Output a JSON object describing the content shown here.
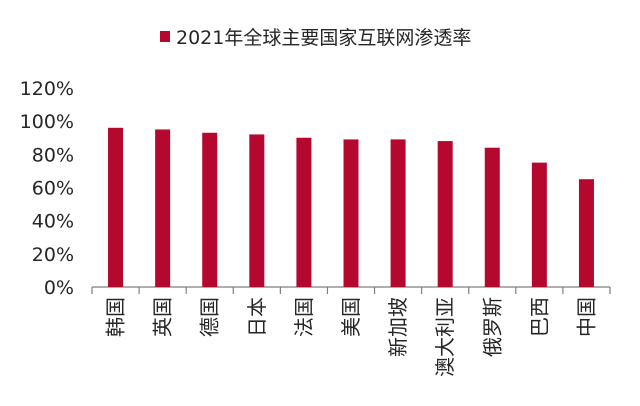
{
  "chart_data": {
    "type": "bar",
    "categories": [
      "韩国",
      "英国",
      "德国",
      "日本",
      "法国",
      "美国",
      "新加坡",
      "澳大利亚",
      "俄罗斯",
      "巴西",
      "中国"
    ],
    "series": [
      {
        "name": "2021年全球主要国家互联网渗透率",
        "values": [
          96,
          95,
          93,
          92,
          90,
          89,
          89,
          88,
          84,
          75,
          65
        ],
        "color": "#b5082f"
      }
    ],
    "ylim": [
      0,
      120
    ],
    "yticks": [
      0,
      20,
      40,
      60,
      80,
      100,
      120
    ],
    "ytick_suffix": "%",
    "legend_position": "top",
    "grid": false
  }
}
